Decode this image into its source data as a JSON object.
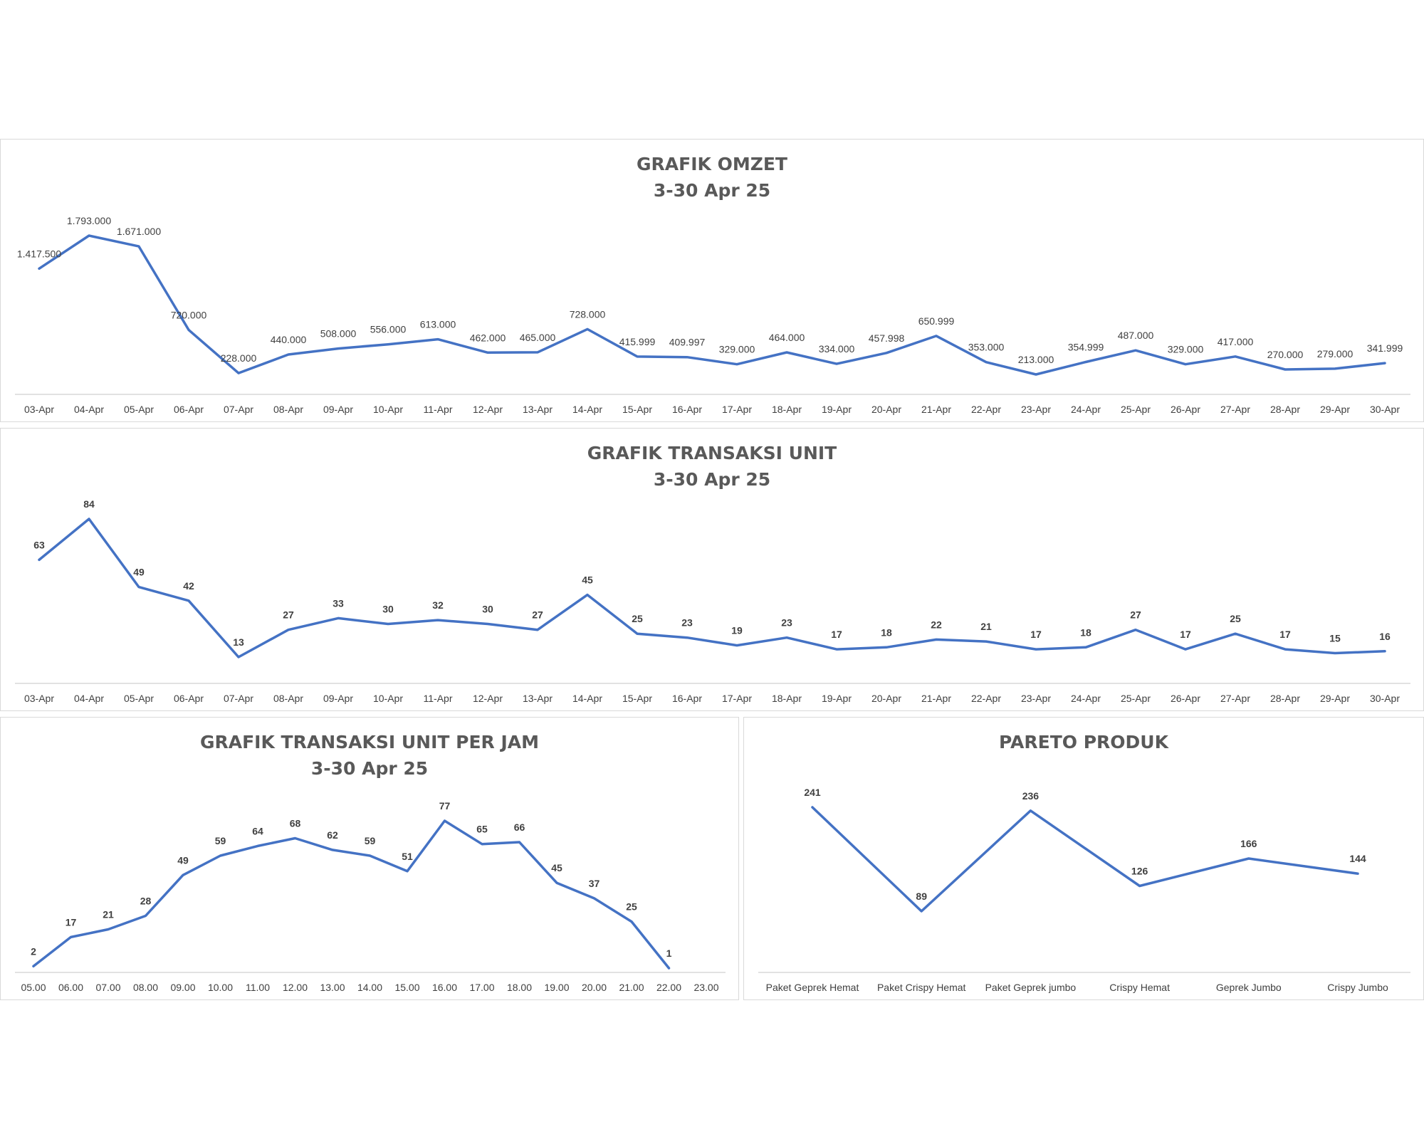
{
  "colors": {
    "line": "#4472C4",
    "axis": "#d9d9d9",
    "label": "#404040",
    "title": "#595959"
  },
  "chart_data": [
    {
      "id": "omzet",
      "type": "line",
      "title": "GRAFIK OMZET",
      "subtitle": "3-30 Apr 25",
      "categories": [
        "03-Apr",
        "04-Apr",
        "05-Apr",
        "06-Apr",
        "07-Apr",
        "08-Apr",
        "09-Apr",
        "10-Apr",
        "11-Apr",
        "12-Apr",
        "13-Apr",
        "14-Apr",
        "15-Apr",
        "16-Apr",
        "17-Apr",
        "18-Apr",
        "19-Apr",
        "20-Apr",
        "21-Apr",
        "22-Apr",
        "23-Apr",
        "24-Apr",
        "25-Apr",
        "26-Apr",
        "27-Apr",
        "28-Apr",
        "29-Apr",
        "30-Apr"
      ],
      "values": [
        1417500,
        1793000,
        1671000,
        720000,
        228000,
        440000,
        508000,
        556000,
        613000,
        462000,
        465000,
        728000,
        415999,
        409997,
        329000,
        464000,
        334000,
        457998,
        650999,
        353000,
        213000,
        354999,
        487000,
        329000,
        417000,
        270000,
        279000,
        341999
      ],
      "data_labels": [
        "1.417.500",
        "1.793.000",
        "1.671.000",
        "720.000",
        "228.000",
        "440.000",
        "508.000",
        "556.000",
        "613.000",
        "462.000",
        "465.000",
        "728.000",
        "415.999",
        "409.997",
        "329.000",
        "464.000",
        "334.000",
        "457.998",
        "650.999",
        "353.000",
        "213.000",
        "354.999",
        "487.000",
        "329.000",
        "417.000",
        "270.000",
        "279.000",
        "341.999"
      ],
      "label_style": "normal",
      "legend": "none",
      "grid": false
    },
    {
      "id": "unit",
      "type": "line",
      "title": "GRAFIK TRANSAKSI UNIT",
      "subtitle": "3-30 Apr 25",
      "categories": [
        "03-Apr",
        "04-Apr",
        "05-Apr",
        "06-Apr",
        "07-Apr",
        "08-Apr",
        "09-Apr",
        "10-Apr",
        "11-Apr",
        "12-Apr",
        "13-Apr",
        "14-Apr",
        "15-Apr",
        "16-Apr",
        "17-Apr",
        "18-Apr",
        "19-Apr",
        "20-Apr",
        "21-Apr",
        "22-Apr",
        "23-Apr",
        "24-Apr",
        "25-Apr",
        "26-Apr",
        "27-Apr",
        "28-Apr",
        "29-Apr",
        "30-Apr"
      ],
      "values": [
        63,
        84,
        49,
        42,
        13,
        27,
        33,
        30,
        32,
        30,
        27,
        45,
        25,
        23,
        19,
        23,
        17,
        18,
        22,
        21,
        17,
        18,
        27,
        17,
        25,
        17,
        15,
        16
      ],
      "data_labels": [
        "63",
        "84",
        "49",
        "42",
        "13",
        "27",
        "33",
        "30",
        "32",
        "30",
        "27",
        "45",
        "25",
        "23",
        "19",
        "23",
        "17",
        "18",
        "22",
        "21",
        "17",
        "18",
        "27",
        "17",
        "25",
        "17",
        "15",
        "16"
      ],
      "label_style": "bold",
      "legend": "none",
      "grid": false
    },
    {
      "id": "jam",
      "type": "line",
      "title": "GRAFIK TRANSAKSI UNIT PER JAM",
      "subtitle": "3-30 Apr 25",
      "categories": [
        "05.00",
        "06.00",
        "07.00",
        "08.00",
        "09.00",
        "10.00",
        "11.00",
        "12.00",
        "13.00",
        "14.00",
        "15.00",
        "16.00",
        "17.00",
        "18.00",
        "19.00",
        "20.00",
        "21.00",
        "22.00",
        "23.00"
      ],
      "values": [
        2,
        17,
        21,
        28,
        49,
        59,
        64,
        68,
        62,
        59,
        51,
        77,
        65,
        66,
        45,
        37,
        25,
        1,
        null
      ],
      "data_labels": [
        "2",
        "17",
        "21",
        "28",
        "49",
        "59",
        "64",
        "68",
        "62",
        "59",
        "51",
        "77",
        "65",
        "66",
        "45",
        "37",
        "25",
        "1",
        ""
      ],
      "label_style": "bold",
      "legend": "none",
      "grid": false
    },
    {
      "id": "pareto",
      "type": "line",
      "title": "PARETO PRODUK",
      "subtitle": "",
      "categories": [
        "Paket Geprek Hemat",
        "Paket Crispy Hemat",
        "Paket Geprek jumbo",
        "Crispy Hemat",
        "Geprek Jumbo",
        "Crispy Jumbo"
      ],
      "values": [
        241,
        89,
        236,
        126,
        166,
        144
      ],
      "data_labels": [
        "241",
        "89",
        "236",
        "126",
        "166",
        "144"
      ],
      "label_style": "bold",
      "legend": "none",
      "grid": false
    }
  ]
}
